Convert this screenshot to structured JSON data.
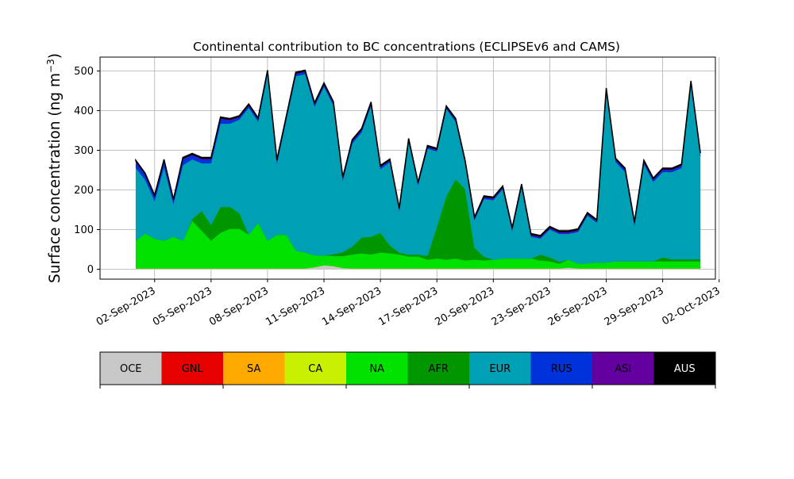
{
  "chart_data": {
    "type": "area",
    "title": "Continental contribution to BC concentrations (ECLIPSEv6 and CAMS)",
    "xlabel": "",
    "ylabel": "Surface concentration (ng m",
    "ylabel_superscript": "−3",
    "ylabel_suffix": ")",
    "ylim": [
      -25,
      535
    ],
    "yticks": [
      0,
      100,
      200,
      300,
      400,
      500
    ],
    "xlim_days": [
      -1.9,
      30.8
    ],
    "xtick_labels": [
      "02-Sep-2023",
      "05-Sep-2023",
      "08-Sep-2023",
      "11-Sep-2023",
      "14-Sep-2023",
      "17-Sep-2023",
      "20-Sep-2023",
      "23-Sep-2023",
      "26-Sep-2023",
      "29-Sep-2023",
      "02-Oct-2023"
    ],
    "grid": true,
    "stack_order": [
      "OCE",
      "GNL",
      "SA",
      "CA",
      "NA",
      "AFR",
      "EUR",
      "RUS",
      "ASI",
      "AUS"
    ],
    "colors": {
      "OCE": "#c8c8c8",
      "GNL": "#e60000",
      "SA": "#ffaa00",
      "CA": "#c8f000",
      "NA": "#00e100",
      "AFR": "#009600",
      "EUR": "#00a0b4",
      "RUS": "#0032dc",
      "ASI": "#6400a0",
      "AUS": "#000000"
    },
    "x": [
      "2023-09-01",
      "2023-09-01 12:00",
      "2023-09-02",
      "2023-09-02 12:00",
      "2023-09-03",
      "2023-09-03 12:00",
      "2023-09-04",
      "2023-09-04 12:00",
      "2023-09-05",
      "2023-09-05 12:00",
      "2023-09-06",
      "2023-09-06 12:00",
      "2023-09-07",
      "2023-09-07 12:00",
      "2023-09-08",
      "2023-09-08 12:00",
      "2023-09-09",
      "2023-09-09 12:00",
      "2023-09-10",
      "2023-09-10 12:00",
      "2023-09-11",
      "2023-09-11 12:00",
      "2023-09-12",
      "2023-09-12 12:00",
      "2023-09-13",
      "2023-09-13 12:00",
      "2023-09-14",
      "2023-09-14 12:00",
      "2023-09-15",
      "2023-09-15 12:00",
      "2023-09-16",
      "2023-09-16 12:00",
      "2023-09-17",
      "2023-09-17 12:00",
      "2023-09-18",
      "2023-09-18 12:00",
      "2023-09-19",
      "2023-09-19 12:00",
      "2023-09-20",
      "2023-09-20 12:00",
      "2023-09-21",
      "2023-09-21 12:00",
      "2023-09-22",
      "2023-09-22 12:00",
      "2023-09-23",
      "2023-09-23 12:00",
      "2023-09-24",
      "2023-09-24 12:00",
      "2023-09-25",
      "2023-09-25 12:00",
      "2023-09-26",
      "2023-09-26 12:00",
      "2023-09-27",
      "2023-09-27 12:00",
      "2023-09-28",
      "2023-09-28 12:00",
      "2023-09-29",
      "2023-09-29 12:00",
      "2023-09-30",
      "2023-09-30 12:00",
      "2023-10-01"
    ],
    "series": [
      {
        "name": "OCE",
        "values": [
          2,
          2,
          2,
          2,
          2,
          2,
          2,
          2,
          2,
          2,
          2,
          2,
          2,
          2,
          2,
          2,
          2,
          2,
          2,
          5,
          10,
          8,
          3,
          2,
          2,
          2,
          2,
          2,
          2,
          2,
          2,
          2,
          2,
          2,
          2,
          2,
          2,
          2,
          2,
          2,
          2,
          2,
          2,
          2,
          2,
          2,
          4,
          2,
          2,
          2,
          2,
          2,
          2,
          2,
          2,
          2,
          2,
          2,
          2,
          2,
          2
        ]
      },
      {
        "name": "GNL",
        "values": [
          0,
          0,
          0,
          0,
          0,
          0,
          0,
          0,
          0,
          0,
          0,
          0,
          0,
          0,
          0,
          0,
          0,
          0,
          0,
          0,
          0,
          0,
          0,
          0,
          0,
          0,
          0,
          0,
          0,
          0,
          0,
          0,
          0,
          0,
          0,
          0,
          0,
          0,
          0,
          0,
          0,
          0,
          0,
          0,
          0,
          0,
          0,
          0,
          0,
          0,
          0,
          0,
          0,
          0,
          0,
          0,
          0,
          0,
          0,
          0,
          0
        ]
      },
      {
        "name": "SA",
        "values": [
          0,
          0,
          0,
          0,
          0,
          0,
          0,
          0,
          0,
          0,
          0,
          0,
          0,
          0,
          0,
          0,
          0,
          0,
          0,
          0,
          0,
          0,
          0,
          0,
          0,
          0,
          0,
          0,
          0,
          0,
          0,
          0,
          0,
          0,
          0,
          0,
          0,
          0,
          0,
          0,
          0,
          0,
          0,
          0,
          0,
          0,
          0,
          0,
          0,
          0,
          0,
          0,
          0,
          0,
          0,
          0,
          0,
          0,
          0,
          0,
          0
        ]
      },
      {
        "name": "CA",
        "values": [
          0,
          0,
          0,
          0,
          0,
          0,
          0,
          0,
          0,
          0,
          0,
          0,
          0,
          0,
          0,
          0,
          0,
          0,
          0,
          0,
          0,
          0,
          0,
          0,
          0,
          0,
          0,
          0,
          0,
          0,
          0,
          0,
          0,
          0,
          0,
          0,
          0,
          0,
          0,
          0,
          0,
          0,
          0,
          0,
          0,
          0,
          0,
          0,
          0,
          0,
          0,
          0,
          0,
          0,
          0,
          0,
          0,
          0,
          0,
          0,
          0
        ]
      },
      {
        "name": "NA",
        "values": [
          70,
          88,
          75,
          70,
          80,
          70,
          120,
          95,
          70,
          90,
          100,
          100,
          85,
          115,
          70,
          85,
          85,
          45,
          40,
          30,
          25,
          25,
          30,
          35,
          38,
          35,
          40,
          38,
          35,
          30,
          30,
          22,
          25,
          22,
          25,
          20,
          22,
          20,
          22,
          25,
          25,
          25,
          25,
          20,
          18,
          12,
          20,
          12,
          13,
          15,
          15,
          18,
          18,
          18,
          18,
          18,
          18,
          18,
          18,
          18,
          18
        ]
      },
      {
        "name": "AFR",
        "values": [
          0,
          0,
          0,
          0,
          0,
          0,
          5,
          50,
          40,
          65,
          55,
          40,
          0,
          0,
          0,
          0,
          0,
          0,
          0,
          0,
          0,
          5,
          10,
          20,
          40,
          45,
          50,
          20,
          5,
          5,
          5,
          10,
          80,
          160,
          200,
          180,
          30,
          10,
          0,
          0,
          0,
          0,
          0,
          15,
          10,
          5,
          0,
          0,
          0,
          0,
          0,
          0,
          0,
          0,
          0,
          0,
          10,
          5,
          5,
          5,
          5
        ]
      },
      {
        "name": "EUR",
        "values": [
          183,
          135,
          95,
          185,
          82,
          190,
          150,
          120,
          155,
          210,
          210,
          235,
          320,
          255,
          420,
          180,
          290,
          440,
          450,
          375,
          425,
          375,
          180,
          260,
          265,
          330,
          160,
          210,
          105,
          285,
          175,
          270,
          190,
          220,
          145,
          65,
          70,
          145,
          150,
          175,
          70,
          180,
          55,
          40,
          70,
          70,
          65,
          80,
          120,
          100,
          430,
          250,
          225,
          90,
          245,
          200,
          215,
          220,
          230,
          440,
          260
        ]
      },
      {
        "name": "RUS",
        "values": [
          15,
          12,
          10,
          15,
          8,
          15,
          10,
          10,
          10,
          12,
          8,
          5,
          5,
          5,
          5,
          5,
          5,
          5,
          5,
          5,
          5,
          5,
          5,
          5,
          5,
          5,
          5,
          3,
          3,
          3,
          3,
          3,
          3,
          3,
          3,
          3,
          3,
          3,
          3,
          3,
          3,
          3,
          3,
          3,
          3,
          3,
          3,
          3,
          3,
          3,
          5,
          5,
          5,
          5,
          5,
          5,
          5,
          5,
          5,
          5,
          5
        ]
      },
      {
        "name": "ASI",
        "values": [
          3,
          3,
          3,
          3,
          3,
          3,
          3,
          3,
          3,
          3,
          3,
          3,
          3,
          3,
          3,
          3,
          3,
          3,
          3,
          3,
          3,
          3,
          3,
          3,
          3,
          3,
          3,
          3,
          3,
          3,
          3,
          3,
          3,
          3,
          3,
          3,
          3,
          3,
          3,
          3,
          3,
          3,
          3,
          3,
          3,
          3,
          3,
          3,
          3,
          3,
          3,
          3,
          3,
          3,
          3,
          3,
          3,
          3,
          3,
          3,
          3
        ]
      },
      {
        "name": "AUS",
        "values": [
          2,
          2,
          2,
          2,
          2,
          2,
          2,
          2,
          2,
          2,
          2,
          2,
          2,
          2,
          2,
          2,
          2,
          2,
          2,
          2,
          2,
          2,
          2,
          2,
          2,
          2,
          2,
          2,
          2,
          2,
          2,
          2,
          2,
          2,
          2,
          2,
          2,
          2,
          2,
          2,
          2,
          2,
          2,
          2,
          2,
          2,
          2,
          2,
          2,
          2,
          2,
          2,
          2,
          2,
          2,
          2,
          2,
          2,
          2,
          2,
          2
        ]
      }
    ],
    "legend": {
      "placement": "bottom colorbar",
      "labels": [
        "OCE",
        "GNL",
        "SA",
        "CA",
        "NA",
        "AFR",
        "EUR",
        "RUS",
        "ASI",
        "AUS"
      ],
      "label_colors": [
        "#000000",
        "#000000",
        "#000000",
        "#000000",
        "#000000",
        "#000000",
        "#000000",
        "#000000",
        "#000000",
        "#ffffff"
      ]
    }
  }
}
